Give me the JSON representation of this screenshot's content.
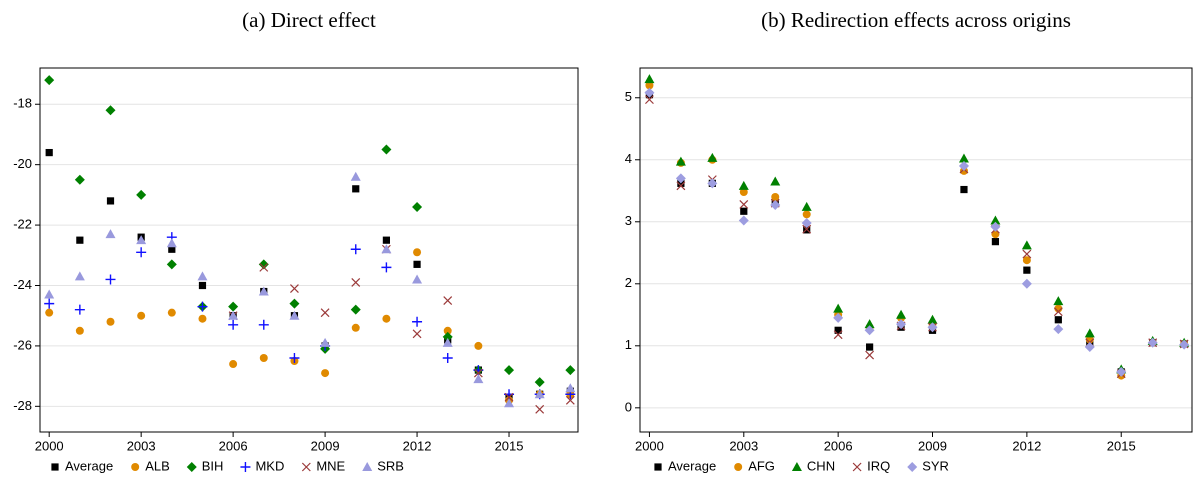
{
  "chart_data": [
    {
      "type": "scatter",
      "title": "(a) Direct effect",
      "x": [
        2000,
        2001,
        2002,
        2003,
        2004,
        2005,
        2006,
        2007,
        2008,
        2009,
        2010,
        2011,
        2012,
        2013,
        2014,
        2015,
        2016,
        2017
      ],
      "xlim": [
        1999.7,
        2017.25
      ],
      "xticks": [
        2000,
        2003,
        2006,
        2009,
        2012,
        2015
      ],
      "ylim": [
        -28.85,
        -16.8
      ],
      "yticks": [
        -28,
        -26,
        -24,
        -22,
        -20,
        -18
      ],
      "grid": true,
      "series": [
        {
          "name": "Average",
          "color": "#000000",
          "marker": "square",
          "values": [
            -19.6,
            -22.5,
            -21.2,
            -22.4,
            -22.8,
            -24.0,
            -25.0,
            -24.2,
            -25.0,
            -26.0,
            -20.8,
            -22.5,
            -23.3,
            -25.8,
            -26.8,
            -27.7,
            -27.6,
            -27.5
          ]
        },
        {
          "name": "ALB",
          "color": "#e08a00",
          "marker": "circle",
          "values": [
            -24.9,
            -25.5,
            -25.2,
            -25.0,
            -24.9,
            -25.1,
            -26.6,
            -26.4,
            -26.5,
            -26.9,
            -25.4,
            -25.1,
            -22.9,
            -25.5,
            -26.0,
            -27.8,
            -27.6,
            -27.6
          ]
        },
        {
          "name": "BIH",
          "color": "#008000",
          "marker": "diamond",
          "values": [
            -17.2,
            -20.5,
            -18.2,
            -21.0,
            -23.3,
            -24.7,
            -24.7,
            -23.3,
            -24.6,
            -26.1,
            -24.8,
            -19.5,
            -21.4,
            -25.7,
            -26.8,
            -26.8,
            -27.2,
            -26.8
          ]
        },
        {
          "name": "MKD",
          "color": "#1010ff",
          "marker": "plus",
          "values": [
            -24.6,
            -24.8,
            -23.8,
            -22.9,
            -22.4,
            -24.7,
            -25.3,
            -25.3,
            -26.4,
            -26.0,
            -22.8,
            -23.4,
            -25.2,
            -26.4,
            -26.8,
            -27.6,
            -27.6,
            -27.6
          ]
        },
        {
          "name": "MNE",
          "color": "#9b3a3a",
          "marker": "x",
          "values": [
            null,
            null,
            null,
            null,
            null,
            null,
            -25.0,
            -23.4,
            -24.1,
            -24.9,
            -23.9,
            -22.8,
            -25.6,
            -24.5,
            -26.9,
            -27.7,
            -28.1,
            -27.8
          ]
        },
        {
          "name": "SRB",
          "color": "#9999dd",
          "marker": "triangle",
          "values": [
            -24.3,
            -23.7,
            -22.3,
            -22.5,
            -22.6,
            -23.7,
            -25.0,
            -24.2,
            -25.0,
            -25.9,
            -20.4,
            -22.8,
            -23.8,
            -25.9,
            -27.1,
            -27.9,
            -27.6,
            -27.4
          ]
        }
      ]
    },
    {
      "type": "scatter",
      "title": "(b) Redirection effects across origins",
      "x": [
        2000,
        2001,
        2002,
        2003,
        2004,
        2005,
        2006,
        2007,
        2008,
        2009,
        2010,
        2011,
        2012,
        2013,
        2014,
        2015,
        2016,
        2017
      ],
      "xlim": [
        1999.7,
        2017.25
      ],
      "xticks": [
        2000,
        2003,
        2006,
        2009,
        2012,
        2015
      ],
      "ylim": [
        -0.39,
        5.48
      ],
      "yticks": [
        0,
        1,
        2,
        3,
        4,
        5
      ],
      "grid": true,
      "series": [
        {
          "name": "Average",
          "color": "#000000",
          "marker": "square",
          "values": [
            5.05,
            3.62,
            3.62,
            3.17,
            3.3,
            2.87,
            1.25,
            0.98,
            1.3,
            1.25,
            3.52,
            2.68,
            2.22,
            1.42,
            1.05,
            0.58,
            1.05,
            1.03
          ]
        },
        {
          "name": "AFG",
          "color": "#e08a00",
          "marker": "circle",
          "values": [
            5.2,
            3.95,
            4.0,
            3.48,
            3.4,
            3.12,
            1.5,
            1.3,
            1.45,
            1.35,
            3.82,
            2.8,
            2.38,
            1.6,
            1.1,
            0.52,
            1.05,
            1.03
          ]
        },
        {
          "name": "CHN",
          "color": "#008000",
          "marker": "triangle",
          "values": [
            5.3,
            3.97,
            4.03,
            3.58,
            3.65,
            3.24,
            1.6,
            1.35,
            1.5,
            1.42,
            4.02,
            3.02,
            2.62,
            1.72,
            1.2,
            0.62,
            1.08,
            1.05
          ]
        },
        {
          "name": "IRQ",
          "color": "#9b3a3a",
          "marker": "x",
          "values": [
            4.97,
            3.58,
            3.68,
            3.28,
            3.3,
            2.88,
            1.18,
            0.85,
            1.32,
            1.3,
            3.85,
            2.88,
            2.48,
            1.55,
            1.05,
            0.55,
            1.05,
            1.03
          ]
        },
        {
          "name": "SYR",
          "color": "#9d9de0",
          "marker": "diamond",
          "values": [
            5.08,
            3.7,
            3.62,
            3.02,
            3.27,
            2.98,
            1.45,
            1.25,
            1.35,
            1.3,
            3.9,
            2.92,
            2.0,
            1.27,
            0.98,
            0.58,
            1.05,
            1.02
          ]
        }
      ]
    }
  ]
}
